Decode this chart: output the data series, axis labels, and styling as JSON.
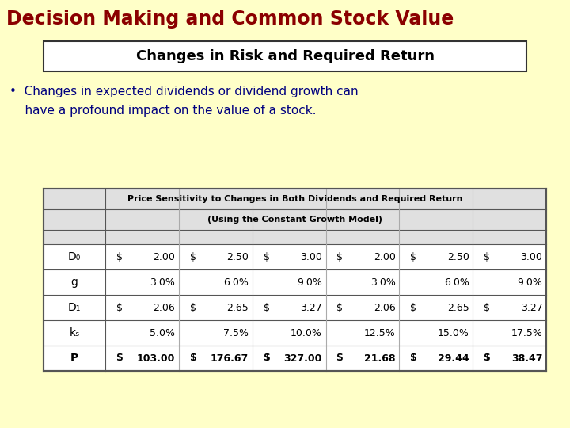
{
  "bg_color": "#FFFFC8",
  "title": "Decision Making and Common Stock Value",
  "title_color": "#8B0000",
  "subtitle": "Changes in Risk and Required Return",
  "subtitle_color": "#000000",
  "bullet_line1": "•  Changes in expected dividends or dividend growth can",
  "bullet_line2": "    have a profound impact on the value of a stock.",
  "bullet_color": "#000080",
  "table_title1": "Price Sensitivity to Changes in Both Dividends and Required Return",
  "table_title2": "(Using the Constant Growth Model)",
  "row_labels": [
    "D₀",
    "g",
    "D₁",
    "kₛ",
    "P"
  ],
  "table_data": [
    [
      "$",
      "2.00",
      "$",
      "2.50",
      "$",
      "3.00",
      "$",
      "2.00",
      "$",
      "2.50",
      "$",
      "3.00"
    ],
    [
      "",
      "3.0%",
      "",
      "6.0%",
      "",
      "9.0%",
      "",
      "3.0%",
      "",
      "6.0%",
      "",
      "9.0%"
    ],
    [
      "$",
      "2.06",
      "$",
      "2.65",
      "$",
      "3.27",
      "$",
      "2.06",
      "$",
      "2.65",
      "$",
      "3.27"
    ],
    [
      "",
      "5.0%",
      "",
      "7.5%",
      "",
      "10.0%",
      "",
      "12.5%",
      "",
      "15.0%",
      "",
      "17.5%"
    ],
    [
      "$",
      "103.00",
      "$",
      "176.67",
      "$",
      "327.00",
      "$",
      "21.68",
      "$",
      "29.44",
      "$",
      "38.47"
    ]
  ],
  "table_border_color": "#555555",
  "grid_color": "#AAAAAA",
  "header_bg": "#E0E0E0",
  "table_bg": "#FFFFFF",
  "title_fontsize": 17,
  "subtitle_fontsize": 13,
  "bullet_fontsize": 11,
  "table_header_fontsize": 8,
  "table_data_fontsize": 9
}
